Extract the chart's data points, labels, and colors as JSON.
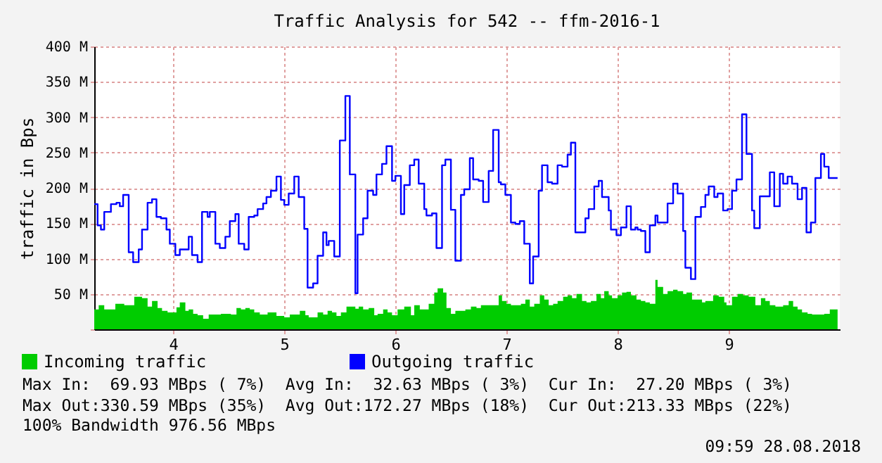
{
  "chart_data": {
    "type": "step",
    "title": "Traffic Analysis for 542 -- ffm-2016-1",
    "ylabel": "traffic in Bps",
    "xlim": [
      3.29,
      10
    ],
    "xticks": [
      4,
      5,
      6,
      7,
      8,
      9
    ],
    "ylim": [
      0,
      400
    ],
    "yticks": [
      {
        "value": 0,
        "label": null
      },
      {
        "value": 50,
        "label": "50 M"
      },
      {
        "value": 100,
        "label": "100 M"
      },
      {
        "value": 150,
        "label": "150 M"
      },
      {
        "value": 200,
        "label": "200 M"
      },
      {
        "value": 250,
        "label": "250 M"
      },
      {
        "value": 300,
        "label": "300 M"
      },
      {
        "value": 350,
        "label": "350 M"
      },
      {
        "value": 400,
        "label": "400 M"
      }
    ],
    "grid": true,
    "legend": "bottom left",
    "series": [
      {
        "name": "Incoming traffic",
        "type": "area",
        "color": "#00cc00",
        "x": [
          3.29,
          3.33,
          3.38,
          3.48,
          3.56,
          3.65,
          3.72,
          3.77,
          3.81,
          3.86,
          3.9,
          3.95,
          4.03,
          4.06,
          4.11,
          4.14,
          4.18,
          4.22,
          4.27,
          4.32,
          4.43,
          4.52,
          4.57,
          4.61,
          4.65,
          4.69,
          4.73,
          4.78,
          4.85,
          4.93,
          5.0,
          5.05,
          5.14,
          5.19,
          5.22,
          5.3,
          5.35,
          5.39,
          5.43,
          5.47,
          5.51,
          5.56,
          5.64,
          5.67,
          5.71,
          5.76,
          5.81,
          5.84,
          5.89,
          5.93,
          5.97,
          6.02,
          6.08,
          6.14,
          6.17,
          6.22,
          6.3,
          6.35,
          6.38,
          6.43,
          6.46,
          6.5,
          6.54,
          6.63,
          6.68,
          6.73,
          6.77,
          6.93,
          6.96,
          7.0,
          7.04,
          7.13,
          7.17,
          7.21,
          7.25,
          7.3,
          7.34,
          7.38,
          7.42,
          7.46,
          7.51,
          7.55,
          7.59,
          7.63,
          7.68,
          7.72,
          7.76,
          7.81,
          7.85,
          7.88,
          7.92,
          7.95,
          8.0,
          8.04,
          8.08,
          8.12,
          8.17,
          8.21,
          8.25,
          8.29,
          8.34,
          8.36,
          8.41,
          8.45,
          8.5,
          8.54,
          8.59,
          8.62,
          8.67,
          8.76,
          8.79,
          8.86,
          8.91,
          8.96,
          8.98,
          9.03,
          9.08,
          9.13,
          9.18,
          9.24,
          9.29,
          9.33,
          9.37,
          9.42,
          9.49,
          9.54,
          9.58,
          9.62,
          9.66,
          9.71,
          9.75,
          9.86,
          9.91,
          9.98
        ],
        "values": [
          28,
          34,
          28,
          36,
          34,
          46,
          44,
          32,
          40,
          30,
          26,
          24,
          31,
          38,
          26,
          28,
          22,
          20,
          15,
          21,
          22,
          21,
          30,
          28,
          30,
          28,
          24,
          21,
          24,
          19,
          17,
          21,
          26,
          20,
          17,
          24,
          21,
          26,
          24,
          19,
          24,
          32,
          29,
          32,
          28,
          30,
          20,
          22,
          28,
          24,
          20,
          28,
          32,
          20,
          34,
          28,
          36,
          52,
          58,
          52,
          30,
          22,
          26,
          28,
          32,
          30,
          34,
          48,
          40,
          36,
          34,
          36,
          42,
          32,
          36,
          48,
          42,
          34,
          36,
          40,
          46,
          48,
          44,
          50,
          40,
          38,
          40,
          50,
          44,
          54,
          48,
          44,
          48,
          52,
          53,
          48,
          42,
          40,
          38,
          36,
          70,
          60,
          50,
          54,
          56,
          54,
          50,
          52,
          42,
          38,
          40,
          48,
          46,
          38,
          34,
          46,
          50,
          48,
          46,
          34,
          44,
          40,
          34,
          32,
          34,
          40,
          32,
          28,
          24,
          22,
          21,
          22,
          28,
          28
        ]
      },
      {
        "name": "Outgoing traffic",
        "color": "#0000ff",
        "x": [
          3.29,
          3.32,
          3.35,
          3.38,
          3.44,
          3.49,
          3.52,
          3.55,
          3.6,
          3.64,
          3.69,
          3.72,
          3.77,
          3.81,
          3.85,
          3.89,
          3.94,
          3.97,
          4.02,
          4.06,
          4.14,
          4.17,
          4.22,
          4.26,
          4.31,
          4.33,
          4.38,
          4.42,
          4.47,
          4.51,
          4.56,
          4.59,
          4.64,
          4.68,
          4.73,
          4.76,
          4.81,
          4.84,
          4.88,
          4.93,
          4.97,
          5.0,
          5.04,
          5.09,
          5.13,
          5.18,
          5.21,
          5.26,
          5.3,
          5.35,
          5.38,
          5.4,
          5.45,
          5.5,
          5.55,
          5.59,
          5.64,
          5.66,
          5.71,
          5.75,
          5.8,
          5.83,
          5.88,
          5.92,
          5.97,
          6.0,
          6.05,
          6.08,
          6.13,
          6.17,
          6.21,
          6.26,
          6.28,
          6.33,
          6.37,
          6.42,
          6.45,
          6.5,
          6.54,
          6.59,
          6.62,
          6.67,
          6.7,
          6.75,
          6.79,
          6.84,
          6.88,
          6.93,
          6.95,
          6.99,
          7.04,
          7.08,
          7.12,
          7.16,
          7.21,
          7.24,
          7.29,
          7.32,
          7.37,
          7.41,
          7.46,
          7.5,
          7.55,
          7.58,
          7.62,
          7.71,
          7.74,
          7.79,
          7.83,
          7.86,
          7.92,
          7.94,
          7.99,
          8.03,
          8.08,
          8.12,
          8.16,
          8.18,
          8.21,
          8.25,
          8.29,
          8.34,
          8.36,
          8.45,
          8.5,
          8.54,
          8.59,
          8.61,
          8.66,
          8.7,
          8.75,
          8.79,
          8.82,
          8.87,
          8.9,
          8.95,
          8.99,
          9.03,
          9.07,
          9.12,
          9.16,
          9.21,
          9.23,
          9.28,
          9.37,
          9.41,
          9.46,
          9.49,
          9.53,
          9.57,
          9.62,
          9.66,
          9.7,
          9.74,
          9.78,
          9.83,
          9.86,
          9.9,
          9.98
        ],
        "values": [
          177,
          147,
          141,
          166,
          177,
          179,
          174,
          190,
          109,
          95,
          113,
          141,
          179,
          184,
          159,
          157,
          141,
          121,
          105,
          113,
          131,
          105,
          95,
          166,
          159,
          166,
          121,
          115,
          131,
          153,
          163,
          121,
          113,
          159,
          161,
          170,
          178,
          187,
          196,
          216,
          183,
          176,
          192,
          216,
          187,
          142,
          59,
          65,
          104,
          137,
          119,
          125,
          103,
          267,
          330,
          219,
          51,
          134,
          157,
          196,
          190,
          219,
          234,
          259,
          210,
          217,
          163,
          204,
          232,
          240,
          206,
          170,
          161,
          164,
          115,
          232,
          240,
          169,
          97,
          190,
          198,
          242,
          212,
          210,
          180,
          224,
          282,
          208,
          205,
          190,
          151,
          149,
          153,
          121,
          65,
          103,
          196,
          232,
          208,
          206,
          232,
          230,
          247,
          264,
          137,
          157,
          170,
          202,
          210,
          187,
          168,
          141,
          133,
          144,
          174,
          141,
          144,
          141,
          139,
          109,
          147,
          161,
          151,
          178,
          206,
          192,
          139,
          87,
          71,
          159,
          173,
          190,
          202,
          187,
          192,
          168,
          170,
          196,
          212,
          304,
          248,
          168,
          143,
          188,
          222,
          174,
          220,
          206,
          216,
          206,
          184,
          200,
          137,
          151,
          214,
          248,
          230,
          214,
          214
        ]
      }
    ],
    "annotations": [
      "Max In:  69.93 MBps ( 7%)  Avg In:  32.63 MBps ( 3%)  Cur In:  27.20 MBps ( 3%)",
      "Max Out:330.59 MBps (35%)  Avg Out:172.27 MBps (18%)  Cur Out:213.33 MBps (22%)",
      "100% Bandwidth 976.56 MBps",
      "09:59 28.08.2018"
    ]
  }
}
